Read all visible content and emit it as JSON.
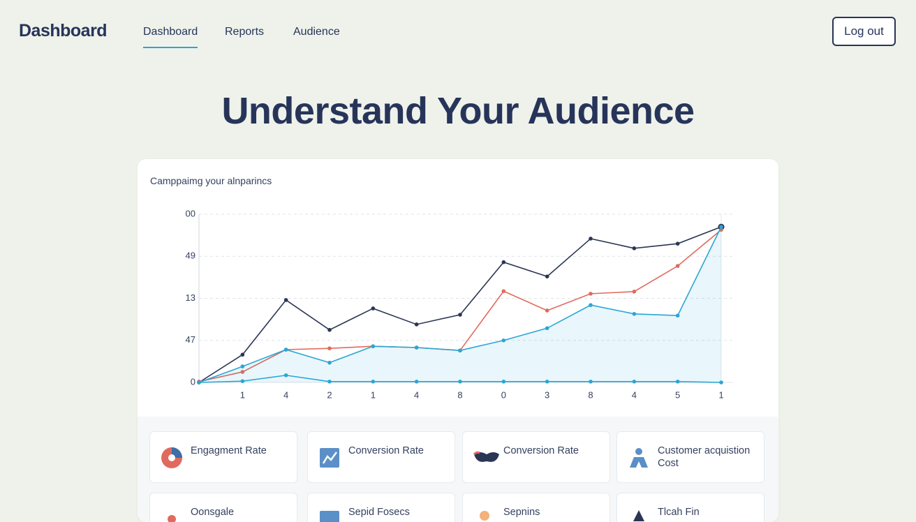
{
  "header": {
    "logo": "Dashboard",
    "nav": [
      "Dashboard",
      "Reports",
      "Audience"
    ],
    "logout": "Log out"
  },
  "heading": "Understand Your Audience",
  "panel_title": "Camppaimg your alnparincs",
  "chart_data": {
    "type": "line",
    "categories": [
      null,
      "1",
      "4",
      "2",
      "1",
      "4",
      "8",
      "0",
      "3",
      "8",
      "4",
      "5",
      "1"
    ],
    "series": [
      {
        "color": "#2a3654",
        "values": [
          0,
          0.66,
          1.96,
          1.25,
          1.76,
          1.38,
          1.61,
          2.86,
          2.52,
          3.42,
          3.19,
          3.3,
          3.7
        ]
      },
      {
        "color": "#e06a5e",
        "values": [
          0.02,
          0.25,
          0.78,
          0.81,
          0.86,
          0.83,
          0.76,
          2.17,
          1.71,
          2.11,
          2.16,
          2.77,
          3.63
        ]
      },
      {
        "color": "#2aa6d4",
        "area": true,
        "values": [
          0,
          0.38,
          0.78,
          0.47,
          0.86,
          0.83,
          0.76,
          1.0,
          1.29,
          1.84,
          1.63,
          1.59,
          3.7
        ]
      },
      {
        "color": "#2aa6d4",
        "values": [
          0,
          0.03,
          0.17,
          0.02,
          0.02,
          0.02,
          0.02,
          0.02,
          0.02,
          0.02,
          0.02,
          0.02,
          0
        ]
      }
    ],
    "ylim": [
      0,
      4
    ],
    "yticks": [
      0,
      {
        "value": 1,
        "label": "47"
      },
      {
        "value": 2,
        "label": "13"
      },
      {
        "value": 3,
        "label": "49"
      },
      {
        "value": 4,
        "label": "00"
      }
    ],
    "grid": true
  },
  "cards": [
    "Engagment Rate",
    "Conversion Rate",
    "Conversion Rate",
    "Customer acquistion Cost",
    "Oonsgale",
    "Sepid Fosecs",
    "Sepnins",
    "Tlcah Fin"
  ]
}
